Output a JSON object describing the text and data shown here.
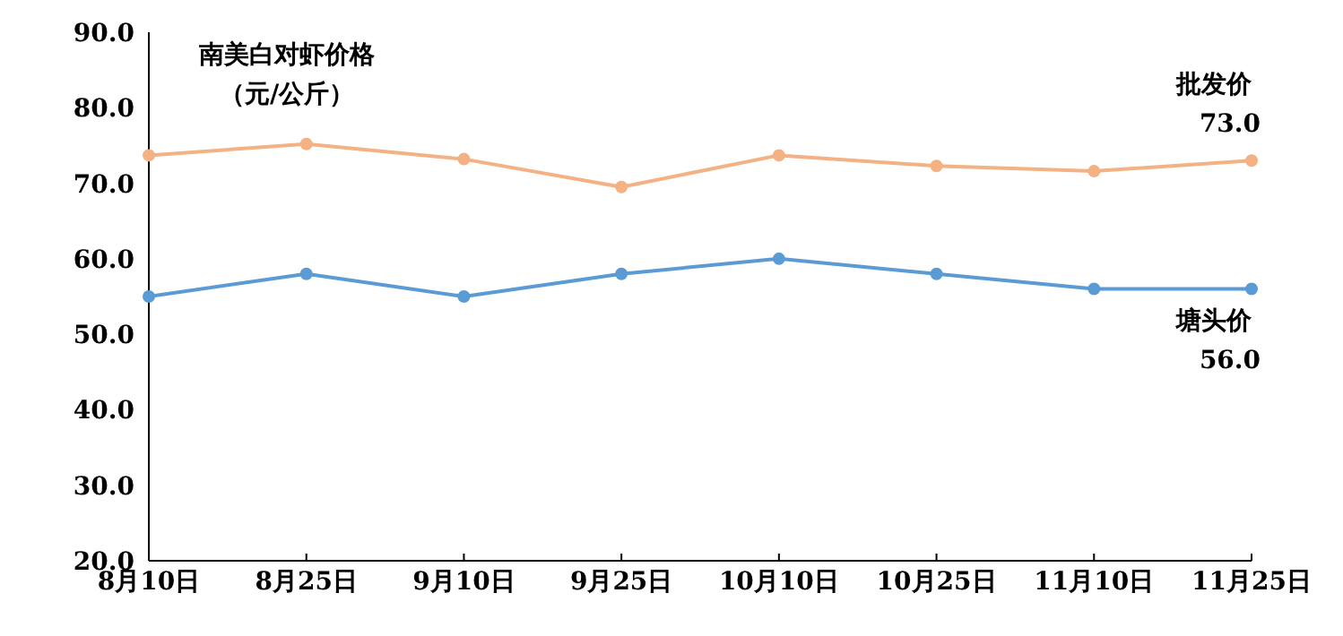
{
  "chart_data": {
    "type": "line",
    "ylabel": "南美白对虾价格（元/公斤）",
    "categories": [
      "8月10日",
      "8月25日",
      "9月10日",
      "9月25日",
      "10月10日",
      "10月25日",
      "11月10日",
      "11月25日"
    ],
    "series": [
      {
        "name": "批发价",
        "color": "#f4b183",
        "values": [
          73.7,
          75.2,
          73.2,
          69.5,
          73.7,
          72.3,
          71.6,
          73.0
        ],
        "value_labels": [
          null,
          null,
          null,
          null,
          null,
          null,
          null,
          "73.0"
        ]
      },
      {
        "name": "塘头价",
        "color": "#5b9bd5",
        "values": [
          55,
          58,
          55,
          58,
          60,
          58,
          56,
          56
        ],
        "value_labels": [
          null,
          null,
          null,
          null,
          null,
          null,
          null,
          "56.0"
        ]
      }
    ],
    "ylim": [
      20,
      90
    ],
    "yticks": [
      {
        "value": 20,
        "label": "20.0"
      },
      {
        "value": 30,
        "label": "30.0"
      },
      {
        "value": 40,
        "label": "40.0"
      },
      {
        "value": 50,
        "label": "50.0"
      },
      {
        "value": 60,
        "label": "60.0"
      },
      {
        "value": 70,
        "label": "70.0"
      },
      {
        "value": 80,
        "label": "80.0"
      },
      {
        "value": 90,
        "label": "90.0"
      }
    ],
    "marker": "circle",
    "legend": false,
    "grid": false
  }
}
